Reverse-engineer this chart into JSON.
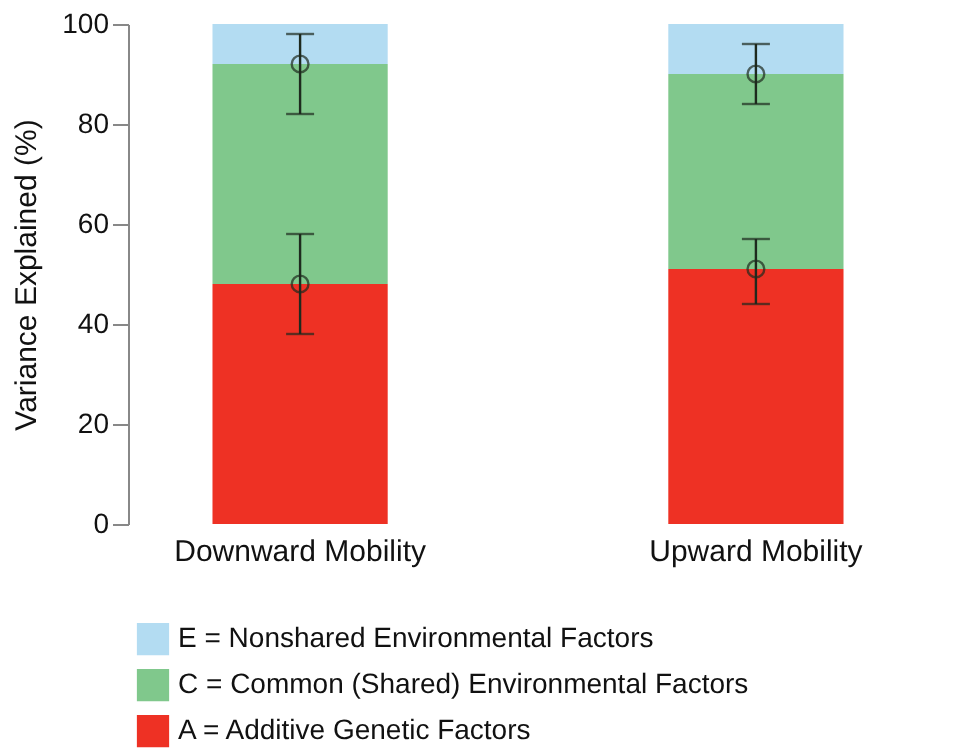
{
  "chart_data": {
    "type": "bar",
    "ylabel": "Variance Explained (%)",
    "categories": [
      "Downward Mobility",
      "Upward Mobility"
    ],
    "stacked": true,
    "ylim": [
      0,
      100
    ],
    "yticks": [
      0,
      20,
      40,
      60,
      80,
      100
    ],
    "grid": false,
    "legend": "bottom",
    "series": [
      {
        "name": "A = Additive Genetic Factors",
        "color": "#ee3124",
        "values": [
          48,
          51
        ]
      },
      {
        "name": "C = Common (Shared) Environmental Factors",
        "color": "#80c88c",
        "values": [
          44,
          39
        ]
      },
      {
        "name": "E = Nonshared Environmental Factors",
        "color": "#b3dcf2",
        "values": [
          8,
          10
        ]
      },
      {
        "type": "scatter",
        "x": [
          "Downward Mobility",
          "Upward Mobility"
        ],
        "color": "#1e2a1e",
        "marker": "circle",
        "values": [
          48,
          51
        ],
        "errors": [
          [
            38,
            58
          ],
          [
            44,
            57
          ]
        ]
      },
      {
        "type": "scatter",
        "x": [
          "Downward Mobility",
          "Upward Mobility"
        ],
        "color": "#1e2a1e",
        "marker": "circle",
        "values": [
          92,
          90
        ],
        "errors": [
          [
            82,
            98
          ],
          [
            84,
            96
          ]
        ]
      }
    ]
  }
}
